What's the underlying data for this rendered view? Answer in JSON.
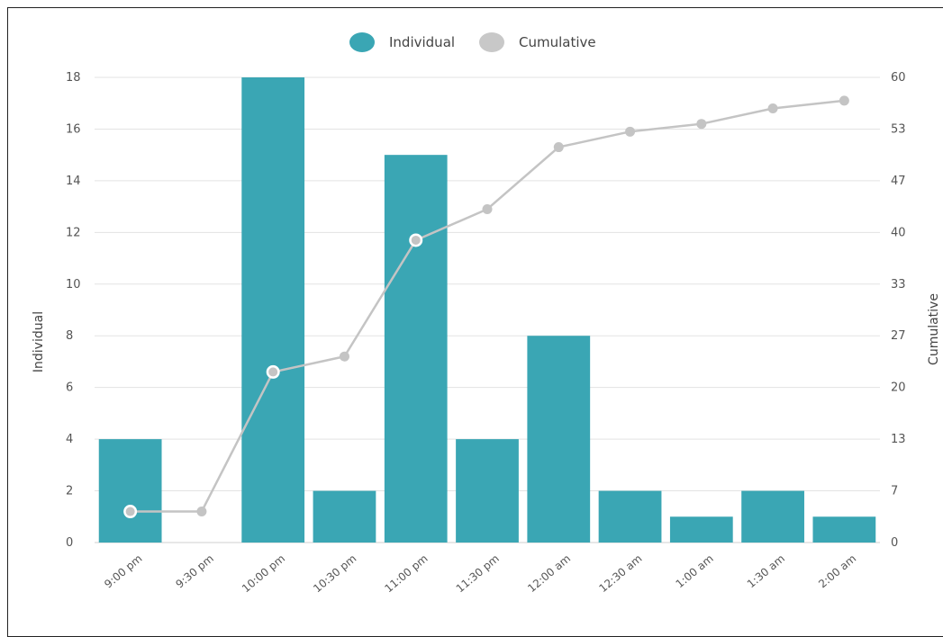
{
  "chart_data": {
    "type": "bar",
    "title": "",
    "categories": [
      "9:00 pm",
      "9:30 pm",
      "10:00 pm",
      "10:30 pm",
      "11:00 pm",
      "11:30 pm",
      "12:00 am",
      "12:30 am",
      "1:00 am",
      "1:30 am",
      "2:00 am"
    ],
    "series": [
      {
        "name": "Individual",
        "type": "bar",
        "axis": "left",
        "color": "#3aa6b4",
        "values": [
          4,
          0,
          18,
          2,
          15,
          4,
          8,
          2,
          1,
          2,
          1
        ]
      },
      {
        "name": "Cumulative",
        "type": "line",
        "axis": "right",
        "color": "#c4c4c4",
        "values": [
          4,
          4,
          22,
          24,
          39,
          43,
          51,
          53,
          54,
          56,
          57
        ]
      }
    ],
    "ylabel_left": "Individual",
    "ylabel_right": "Cumulative",
    "ylim_left": [
      0,
      18
    ],
    "ylim_right": [
      0,
      60
    ],
    "yticks_left": [
      "0",
      "2",
      "4",
      "6",
      "8",
      "10",
      "12",
      "14",
      "16",
      "18"
    ],
    "yticks_right": [
      "0",
      "7",
      "13",
      "20",
      "27",
      "33",
      "40",
      "47",
      "53",
      "60"
    ],
    "legend_position": "top-center",
    "grid": "horizontal"
  }
}
